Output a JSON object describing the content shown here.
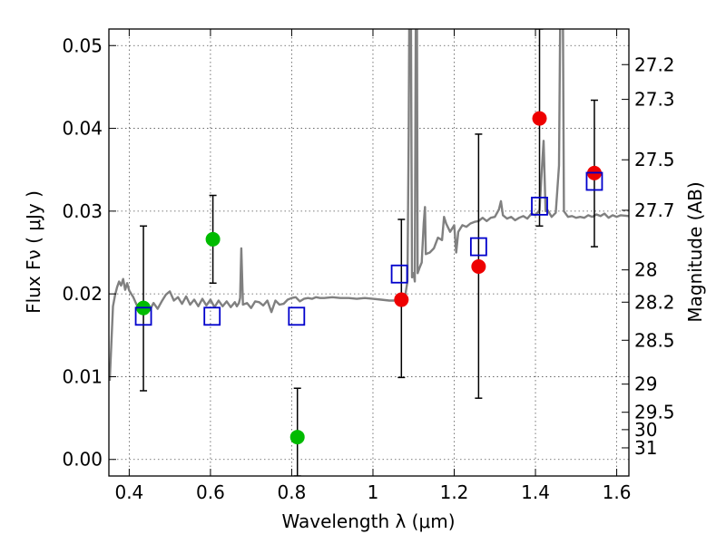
{
  "chart_data": {
    "type": "scatter",
    "xlabel": "Wavelength  λ (μm)",
    "ylabel": "Flux  Fν ( μJy )",
    "y2label": "Magnitude (AB)",
    "xlim": [
      0.35,
      1.63
    ],
    "ylim": [
      -0.002,
      0.052
    ],
    "grid": true,
    "x_ticks": [
      0.4,
      0.6,
      0.8,
      1.0,
      1.2,
      1.4,
      1.6
    ],
    "x_tick_labels": [
      "0.4",
      "0.6",
      "0.8",
      "1",
      "1.2",
      "1.4",
      "1.6"
    ],
    "y_ticks": [
      0.0,
      0.01,
      0.02,
      0.03,
      0.04,
      0.05
    ],
    "y_tick_labels": [
      "0.00",
      "0.01",
      "0.02",
      "0.03",
      "0.04",
      "0.05"
    ],
    "magnitude_ticks": [
      {
        "label": "27.2",
        "flux": 0.0477
      },
      {
        "label": "27.3",
        "flux": 0.0435
      },
      {
        "label": "27.5",
        "flux": 0.0362
      },
      {
        "label": "27.7",
        "flux": 0.0301
      },
      {
        "label": "28",
        "flux": 0.0229
      },
      {
        "label": "28.2",
        "flux": 0.019
      },
      {
        "label": "28.5",
        "flux": 0.0144
      },
      {
        "label": "29",
        "flux": 0.0091
      },
      {
        "label": "29.5",
        "flux": 0.0057
      },
      {
        "label": "30",
        "flux": 0.0036
      },
      {
        "label": "31",
        "flux": 0.0014
      }
    ],
    "series": [
      {
        "color": "#00bb00",
        "marker": "circle",
        "points": [
          {
            "x": 0.435,
            "y": 0.0183,
            "yerr_low": 0.0083,
            "yerr_high": 0.0282
          },
          {
            "x": 0.606,
            "y": 0.0266,
            "yerr_low": 0.0213,
            "yerr_high": 0.0319
          },
          {
            "x": 0.814,
            "y": 0.0027,
            "yerr_low": -0.002,
            "yerr_high": 0.0086
          }
        ]
      },
      {
        "color": "#ee0000",
        "marker": "circle",
        "points": [
          {
            "x": 1.07,
            "y": 0.0193,
            "yerr_low": 0.0099,
            "yerr_high": 0.029
          },
          {
            "x": 1.26,
            "y": 0.0233,
            "yerr_low": 0.0074,
            "yerr_high": 0.0393
          },
          {
            "x": 1.41,
            "y": 0.0412,
            "yerr_low": 0.0282,
            "yerr_high": 0.052
          },
          {
            "x": 1.545,
            "y": 0.0346,
            "yerr_low": 0.0257,
            "yerr_high": 0.0434
          }
        ]
      },
      {
        "color": "#0000cc",
        "marker": "open-square",
        "points": [
          {
            "x": 0.435,
            "y": 0.0173
          },
          {
            "x": 0.604,
            "y": 0.0173
          },
          {
            "x": 0.812,
            "y": 0.0173
          },
          {
            "x": 1.065,
            "y": 0.0224
          },
          {
            "x": 1.26,
            "y": 0.0257
          },
          {
            "x": 1.41,
            "y": 0.0306
          },
          {
            "x": 1.545,
            "y": 0.0336
          }
        ]
      }
    ],
    "model_spectrum": {
      "color": "#808080",
      "points": [
        [
          0.352,
          0.0095
        ],
        [
          0.356,
          0.014
        ],
        [
          0.36,
          0.0185
        ],
        [
          0.365,
          0.0198
        ],
        [
          0.37,
          0.0208
        ],
        [
          0.375,
          0.0215
        ],
        [
          0.38,
          0.021
        ],
        [
          0.385,
          0.0218
        ],
        [
          0.39,
          0.0205
        ],
        [
          0.395,
          0.0213
        ],
        [
          0.4,
          0.0204
        ],
        [
          0.41,
          0.0196
        ],
        [
          0.42,
          0.0185
        ],
        [
          0.43,
          0.018
        ],
        [
          0.44,
          0.0183
        ],
        [
          0.45,
          0.018
        ],
        [
          0.46,
          0.0189
        ],
        [
          0.47,
          0.0182
        ],
        [
          0.48,
          0.0191
        ],
        [
          0.49,
          0.0199
        ],
        [
          0.5,
          0.0203
        ],
        [
          0.51,
          0.0192
        ],
        [
          0.52,
          0.0196
        ],
        [
          0.53,
          0.0188
        ],
        [
          0.54,
          0.0197
        ],
        [
          0.55,
          0.0187
        ],
        [
          0.56,
          0.0193
        ],
        [
          0.57,
          0.0185
        ],
        [
          0.58,
          0.0194
        ],
        [
          0.59,
          0.0186
        ],
        [
          0.6,
          0.0193
        ],
        [
          0.61,
          0.0184
        ],
        [
          0.62,
          0.0192
        ],
        [
          0.63,
          0.0185
        ],
        [
          0.64,
          0.0191
        ],
        [
          0.65,
          0.0184
        ],
        [
          0.66,
          0.019
        ],
        [
          0.665,
          0.0185
        ],
        [
          0.67,
          0.0189
        ],
        [
          0.673,
          0.0195
        ],
        [
          0.676,
          0.0255
        ],
        [
          0.68,
          0.0187
        ],
        [
          0.69,
          0.0189
        ],
        [
          0.7,
          0.0183
        ],
        [
          0.71,
          0.0191
        ],
        [
          0.72,
          0.019
        ],
        [
          0.73,
          0.0186
        ],
        [
          0.74,
          0.0192
        ],
        [
          0.75,
          0.0178
        ],
        [
          0.76,
          0.0192
        ],
        [
          0.77,
          0.0187
        ],
        [
          0.78,
          0.0188
        ],
        [
          0.79,
          0.0193
        ],
        [
          0.8,
          0.0195
        ],
        [
          0.81,
          0.0196
        ],
        [
          0.82,
          0.0191
        ],
        [
          0.83,
          0.0194
        ],
        [
          0.84,
          0.0195
        ],
        [
          0.85,
          0.0194
        ],
        [
          0.86,
          0.0196
        ],
        [
          0.87,
          0.0195
        ],
        [
          0.88,
          0.0195
        ],
        [
          0.9,
          0.0196
        ],
        [
          0.92,
          0.0195
        ],
        [
          0.94,
          0.0195
        ],
        [
          0.96,
          0.0194
        ],
        [
          0.98,
          0.0195
        ],
        [
          1.0,
          0.0194
        ],
        [
          1.02,
          0.0193
        ],
        [
          1.04,
          0.0192
        ],
        [
          1.06,
          0.0192
        ],
        [
          1.07,
          0.0189
        ],
        [
          1.075,
          0.019
        ],
        [
          1.08,
          0.02
        ],
        [
          1.085,
          0.0215
        ],
        [
          1.088,
          0.04
        ],
        [
          1.09,
          0.06
        ],
        [
          1.093,
          0.06
        ],
        [
          1.096,
          0.022
        ],
        [
          1.1,
          0.0225
        ],
        [
          1.103,
          0.0215
        ],
        [
          1.106,
          0.06
        ],
        [
          1.108,
          0.06
        ],
        [
          1.11,
          0.0225
        ],
        [
          1.115,
          0.0232
        ],
        [
          1.12,
          0.0238
        ],
        [
          1.125,
          0.0285
        ],
        [
          1.128,
          0.0305
        ],
        [
          1.13,
          0.0248
        ],
        [
          1.14,
          0.025
        ],
        [
          1.15,
          0.0255
        ],
        [
          1.16,
          0.0268
        ],
        [
          1.17,
          0.0265
        ],
        [
          1.175,
          0.0293
        ],
        [
          1.18,
          0.0285
        ],
        [
          1.19,
          0.0275
        ],
        [
          1.2,
          0.0283
        ],
        [
          1.205,
          0.025
        ],
        [
          1.21,
          0.0275
        ],
        [
          1.22,
          0.0283
        ],
        [
          1.23,
          0.0281
        ],
        [
          1.24,
          0.0285
        ],
        [
          1.25,
          0.0287
        ],
        [
          1.26,
          0.0288
        ],
        [
          1.27,
          0.0292
        ],
        [
          1.28,
          0.0288
        ],
        [
          1.29,
          0.0292
        ],
        [
          1.3,
          0.0293
        ],
        [
          1.31,
          0.0302
        ],
        [
          1.315,
          0.0312
        ],
        [
          1.32,
          0.0295
        ],
        [
          1.33,
          0.0291
        ],
        [
          1.34,
          0.0293
        ],
        [
          1.35,
          0.0289
        ],
        [
          1.36,
          0.0292
        ],
        [
          1.37,
          0.0294
        ],
        [
          1.38,
          0.0291
        ],
        [
          1.39,
          0.0297
        ],
        [
          1.4,
          0.0295
        ],
        [
          1.41,
          0.0301
        ],
        [
          1.415,
          0.0345
        ],
        [
          1.42,
          0.0385
        ],
        [
          1.425,
          0.03
        ],
        [
          1.43,
          0.0301
        ],
        [
          1.44,
          0.0293
        ],
        [
          1.45,
          0.0298
        ],
        [
          1.458,
          0.0355
        ],
        [
          1.462,
          0.06
        ],
        [
          1.467,
          0.06
        ],
        [
          1.47,
          0.03
        ],
        [
          1.48,
          0.0293
        ],
        [
          1.49,
          0.0294
        ],
        [
          1.5,
          0.0292
        ],
        [
          1.51,
          0.0293
        ],
        [
          1.52,
          0.0292
        ],
        [
          1.53,
          0.0295
        ],
        [
          1.54,
          0.0293
        ],
        [
          1.55,
          0.0296
        ],
        [
          1.56,
          0.0294
        ],
        [
          1.57,
          0.0297
        ],
        [
          1.58,
          0.0292
        ],
        [
          1.59,
          0.0295
        ],
        [
          1.6,
          0.0293
        ],
        [
          1.61,
          0.0295
        ],
        [
          1.63,
          0.0294
        ]
      ]
    }
  }
}
